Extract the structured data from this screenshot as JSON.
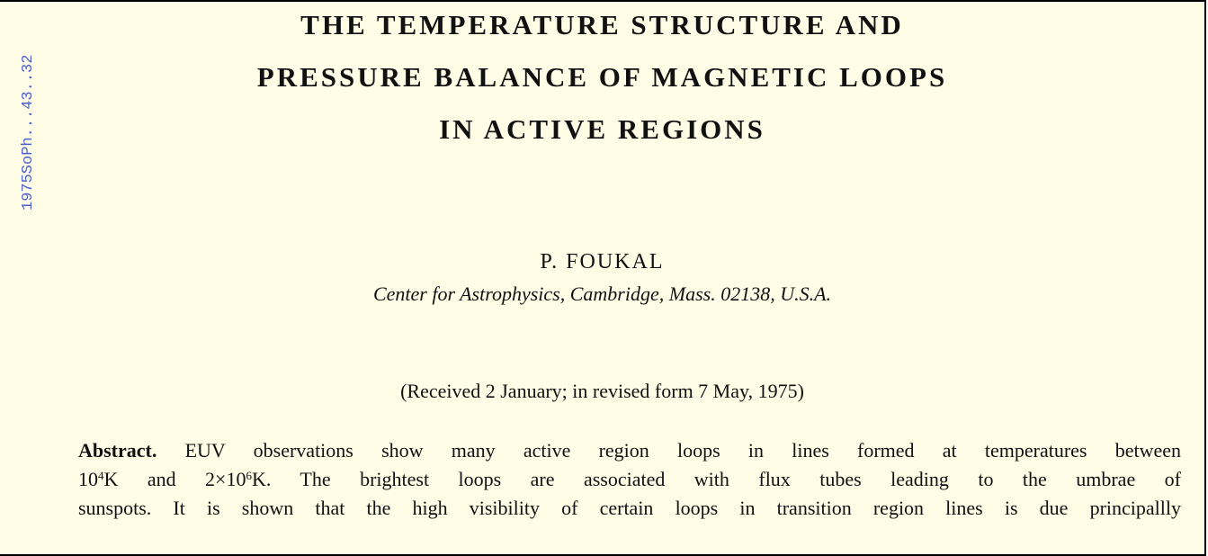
{
  "margin_label": "1975SoPh...43..32",
  "title": {
    "lines": [
      "THE TEMPERATURE STRUCTURE AND",
      "PRESSURE BALANCE OF MAGNETIC LOOPS",
      "IN ACTIVE REGIONS"
    ]
  },
  "author": "P. FOUKAL",
  "affiliation": "Center for Astrophysics, Cambridge, Mass. 02138, U.S.A.",
  "received": "(Received 2 January; in revised form 7 May, 1975)",
  "abstract": {
    "label": "Abstract.",
    "lines": [
      [
        "EUV observations show many active region loops in lines formed at temperatures between"
      ],
      [
        "10",
        "4",
        "K and 2×10",
        "6",
        "K. The brightest loops are associated with flux tubes leading to the umbrae of"
      ],
      [
        "sunspots. It is shown that the high visibility of certain loops in transition region lines is due principallly"
      ]
    ]
  }
}
